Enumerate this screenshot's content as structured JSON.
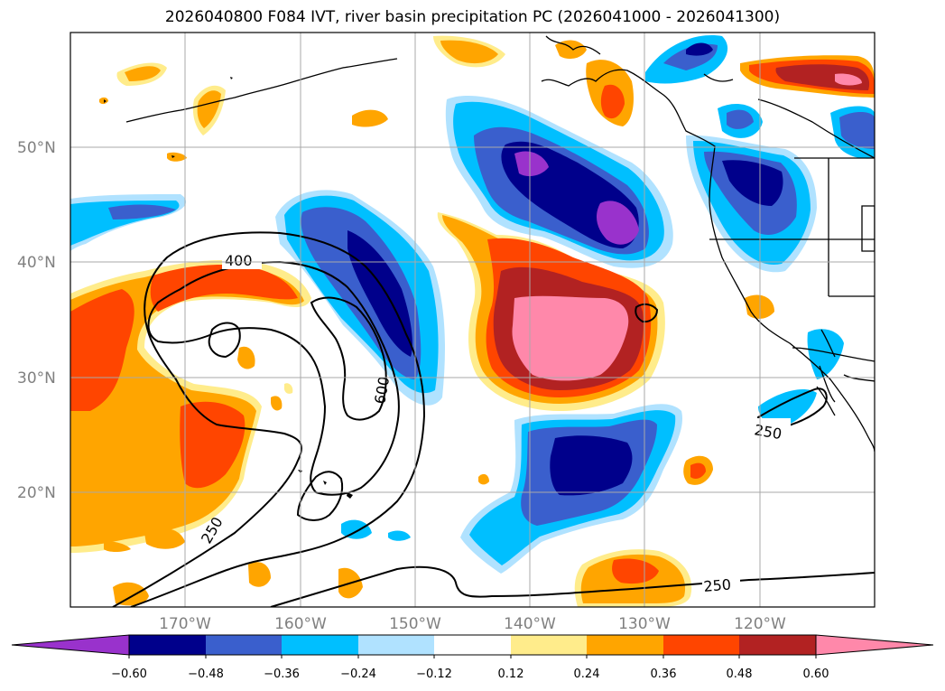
{
  "title": "2026040800 F084 IVT, river basin precipitation PC (2026041000 - 2026041300)",
  "map": {
    "projection": "PlateCarree",
    "extent": {
      "lon_min": -180,
      "lon_max": -110,
      "lat_min": 10,
      "lat_max": 60
    },
    "lat_labels": [
      "50°N",
      "40°N",
      "30°N",
      "20°N"
    ],
    "lon_labels": [
      "170°W",
      "160°W",
      "150°W",
      "140°W",
      "130°W",
      "120°W"
    ],
    "grid_color": "#a9a9a9",
    "label_color": "#808080"
  },
  "ivt_contours": {
    "levels": [
      250,
      400,
      600
    ],
    "labels": [
      "400",
      "600",
      "250",
      "250",
      "250"
    ]
  },
  "colorbar": {
    "extend": "both",
    "colors": [
      "#9932cc",
      "#00008b",
      "#3a5fcd",
      "#00bfff",
      "#b0e2ff",
      "#ffffff",
      "#ffec8b",
      "#ffa500",
      "#ff4500",
      "#b22222",
      "#ff88aa"
    ],
    "tick_labels": [
      "−0.60",
      "−0.48",
      "−0.36",
      "−0.24",
      "−0.12",
      "0.12",
      "0.24",
      "0.36",
      "0.48",
      "0.60"
    ]
  }
}
